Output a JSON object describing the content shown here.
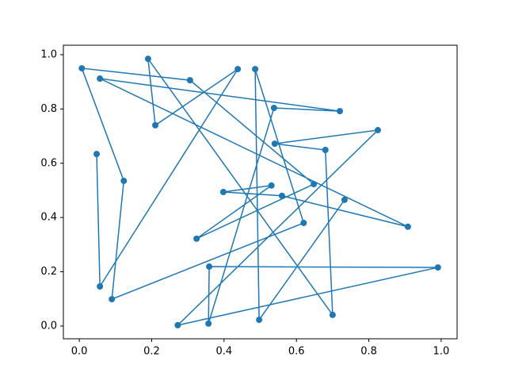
{
  "chart_data": {
    "type": "line",
    "markers": true,
    "color": "#1f77b4",
    "x": [
      0.048,
      0.057,
      0.438,
      0.21,
      0.19,
      0.7,
      0.68,
      0.54,
      0.825,
      0.272,
      0.991,
      0.359,
      0.357,
      0.538,
      0.72,
      0.057,
      0.908,
      0.56,
      0.398,
      0.531,
      0.324,
      0.648,
      0.306,
      0.007,
      0.123,
      0.09,
      0.62,
      0.486,
      0.497,
      0.733
    ],
    "values": [
      0.634,
      0.146,
      0.947,
      0.74,
      0.985,
      0.041,
      0.649,
      0.672,
      0.722,
      0.003,
      0.216,
      0.219,
      0.009,
      0.804,
      0.792,
      0.912,
      0.366,
      0.48,
      0.494,
      0.518,
      0.322,
      0.523,
      0.906,
      0.95,
      0.535,
      0.099,
      0.38,
      0.947,
      0.023,
      0.465
    ],
    "xlim": [
      -0.044,
      1.044
    ],
    "ylim": [
      -0.047,
      1.035
    ],
    "xticks": [
      {
        "value": 0,
        "label": "0.0"
      },
      0.2,
      0.4,
      0.6,
      0.8,
      {
        "value": 1,
        "label": "1.0"
      }
    ],
    "yticks": [
      {
        "value": 0,
        "label": "0.0"
      },
      0.2,
      0.4,
      0.6,
      0.8,
      {
        "value": 1,
        "label": "1.0"
      }
    ]
  }
}
